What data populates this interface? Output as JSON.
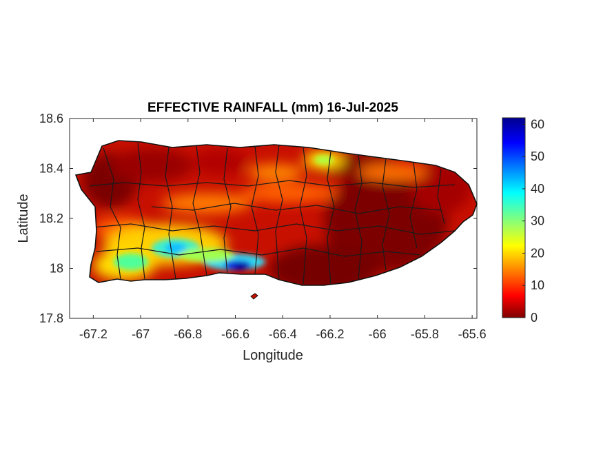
{
  "chart_data": {
    "type": "heatmap",
    "title": "EFFECTIVE RAINFALL (mm) 16-Jul-2025",
    "xlabel": "Longitude",
    "ylabel": "Latitude",
    "xlim": [
      -67.3,
      -65.58
    ],
    "ylim": [
      17.8,
      18.6
    ],
    "xticks": [
      -67.2,
      -67,
      -66.8,
      -66.6,
      -66.4,
      -66.2,
      -66,
      -65.8,
      -65.6
    ],
    "xtick_labels": [
      "-67.2",
      "-67",
      "-66.8",
      "-66.6",
      "-66.4",
      "-66.2",
      "-66",
      "-65.8",
      "-65.6"
    ],
    "yticks": [
      17.8,
      18,
      18.2,
      18.4,
      18.6
    ],
    "ytick_labels": [
      "17.8",
      "18",
      "18.2",
      "18.4",
      "18.6"
    ],
    "colorbar": {
      "colormap": "jet",
      "range": [
        0,
        62
      ],
      "ticks": [
        0,
        10,
        20,
        30,
        40,
        50,
        60
      ],
      "tick_labels": [
        "0",
        "10",
        "20",
        "30",
        "40",
        "50",
        "60"
      ]
    },
    "grid": false,
    "values_summary": [
      {
        "region": "southwest coast",
        "lon": [
          -67.2,
          -66.95
        ],
        "lat": [
          17.95,
          18.05
        ],
        "rainfall_mm": [
          25,
          40
        ]
      },
      {
        "region": "south-central coast",
        "lon": [
          -66.65,
          -66.5
        ],
        "lat": [
          17.97,
          18.02
        ],
        "rainfall_mm": [
          50,
          60
        ]
      },
      {
        "region": "south-central interior",
        "lon": [
          -66.85,
          -66.75
        ],
        "lat": [
          18.03,
          18.08
        ],
        "rainfall_mm": [
          30,
          40
        ]
      },
      {
        "region": "north-central",
        "lon": [
          -66.3,
          -66.25
        ],
        "lat": [
          18.4,
          18.45
        ],
        "rainfall_mm": [
          20,
          30
        ]
      },
      {
        "region": "southeast",
        "lon": [
          -66.4,
          -65.9
        ],
        "lat": [
          17.95,
          18.25
        ],
        "rainfall_mm": [
          0,
          5
        ]
      }
    ]
  }
}
